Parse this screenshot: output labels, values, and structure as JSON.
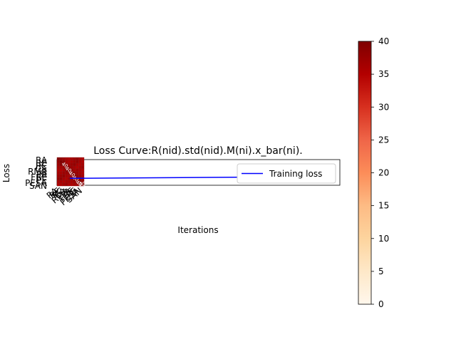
{
  "chart_data": [
    {
      "type": "line",
      "title": "Loss Curve:R(nid).std(nid).M(ni).x_bar(ni).",
      "xlabel": "Iterations",
      "ylabel": "Loss",
      "legend": {
        "position": "right",
        "entries": [
          "Training loss"
        ]
      },
      "series": [
        {
          "name": "Training loss",
          "color": "#0000ff",
          "x": [
            0,
            1
          ],
          "y": [
            0.27,
            0.34
          ]
        }
      ],
      "xlim": [
        -0.05,
        1.05
      ],
      "ylim": [
        0,
        1
      ],
      "grid": false
    },
    {
      "type": "heatmap",
      "description_labels_unreadable": true,
      "row_labels": [
        "RA",
        "RE",
        "RC",
        "CA",
        "RMA",
        "PA",
        "FRE",
        "PE",
        "PESA",
        "SAN"
      ],
      "col_labels": [
        "RA",
        "RE",
        "RC",
        "CA",
        "RMA",
        "PA",
        "FRE",
        "PE",
        "PESA",
        "SAN"
      ],
      "values": [
        [
          40,
          38,
          37,
          36,
          35,
          36,
          37,
          38,
          36,
          35
        ],
        [
          38,
          40,
          39,
          36,
          35,
          36,
          37,
          38,
          36,
          35
        ],
        [
          37,
          39,
          40,
          37,
          36,
          37,
          38,
          36,
          35,
          36
        ],
        [
          36,
          36,
          37,
          40,
          38,
          37,
          36,
          35,
          36,
          37
        ],
        [
          35,
          35,
          36,
          38,
          40,
          38,
          36,
          37,
          36,
          35
        ],
        [
          36,
          36,
          37,
          37,
          38,
          40,
          38,
          37,
          36,
          35
        ],
        [
          37,
          37,
          38,
          36,
          36,
          38,
          40,
          38,
          37,
          36
        ],
        [
          38,
          38,
          36,
          35,
          37,
          37,
          38,
          40,
          38,
          37
        ],
        [
          36,
          36,
          35,
          36,
          36,
          36,
          37,
          38,
          40,
          38
        ],
        [
          35,
          35,
          36,
          37,
          35,
          35,
          36,
          37,
          38,
          40
        ]
      ],
      "cell_text": "40",
      "colormap": "OrRd",
      "colorbar": {
        "min": 0,
        "max": 40,
        "ticks": [
          0,
          5,
          10,
          15,
          20,
          25,
          30,
          35,
          40
        ]
      }
    }
  ]
}
